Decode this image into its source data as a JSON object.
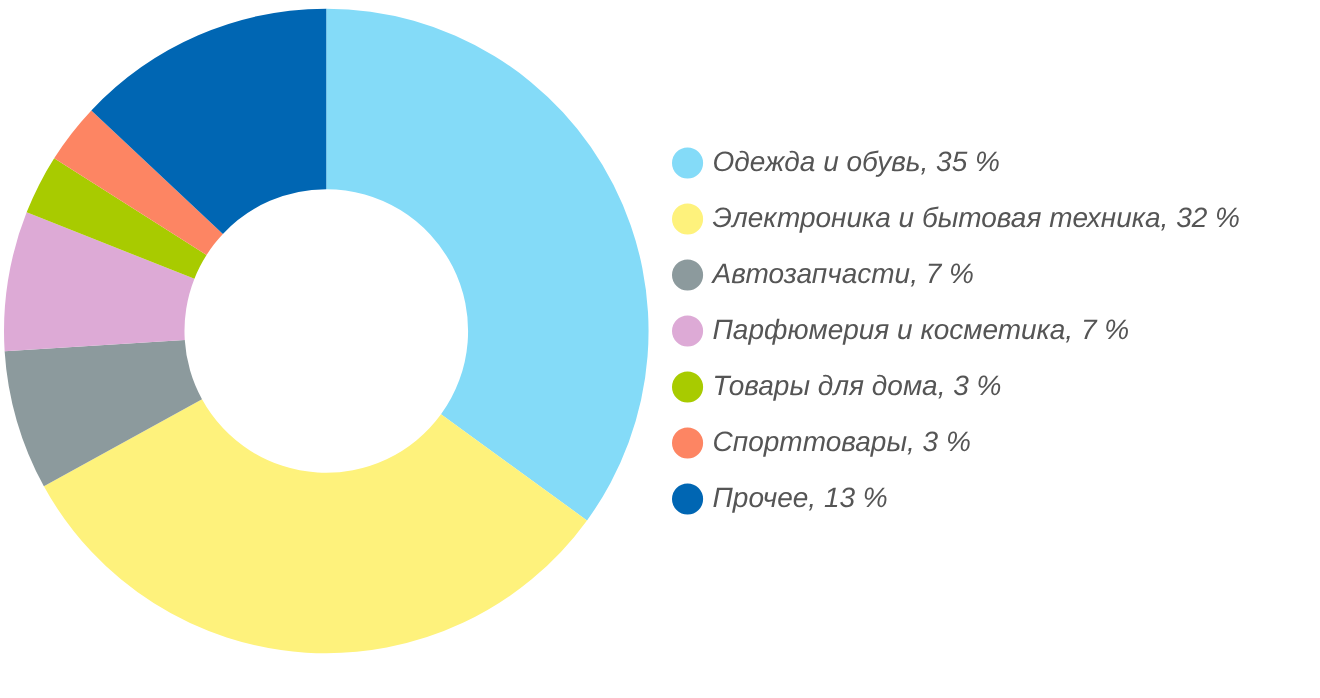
{
  "chart_data": {
    "type": "donut",
    "categories": [
      "Одежда и обувь",
      "Электроника и бытовая техника",
      "Автозапчасти",
      "Парфюмерия и косметика",
      "Товары для дома",
      "Спорттовары",
      "Прочее"
    ],
    "values": [
      35,
      32,
      7,
      7,
      3,
      3,
      13
    ],
    "value_labels": [
      "35 %",
      "32 %",
      "7 %",
      "7 %",
      "3 %",
      "3 %",
      "13 %"
    ],
    "colors": [
      "#84dbf8",
      "#fef27c",
      "#8c9a9d",
      "#ddaad6",
      "#a8cb00",
      "#fd8563",
      "#0066b3"
    ],
    "legend": "right"
  }
}
